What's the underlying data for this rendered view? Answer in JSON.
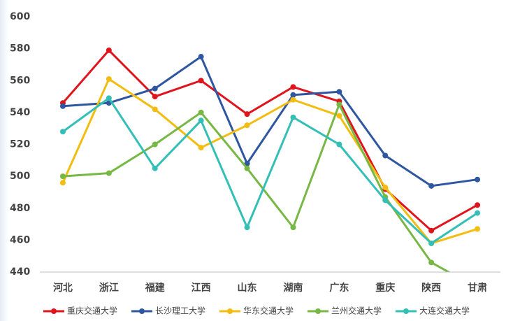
{
  "chart_data": {
    "type": "line",
    "categories": [
      "河北",
      "浙江",
      "福建",
      "江西",
      "山东",
      "湖南",
      "广东",
      "重庆",
      "陕西",
      "甘肃"
    ],
    "series": [
      {
        "name": "重庆交通大学",
        "color": "#e0141c",
        "values": [
          546,
          579,
          550,
          560,
          539,
          556,
          547,
          492,
          466,
          482
        ]
      },
      {
        "name": "长沙理工大学",
        "color": "#2f56a0",
        "values": [
          544,
          546,
          555,
          575,
          508,
          551,
          553,
          513,
          494,
          498
        ]
      },
      {
        "name": "华东交通大学",
        "color": "#f2bd10",
        "values": [
          496,
          561,
          542,
          518,
          532,
          548,
          538,
          493,
          458,
          467
        ]
      },
      {
        "name": "兰州交通大学",
        "color": "#77b844",
        "values": [
          500,
          502,
          520,
          540,
          505,
          468,
          545,
          487,
          446,
          430
        ]
      },
      {
        "name": "大连交通大学",
        "color": "#33bfb6",
        "values": [
          528,
          549,
          505,
          535,
          468,
          537,
          520,
          485,
          458,
          477
        ]
      }
    ],
    "ylim": [
      440,
      600
    ],
    "yticks": [
      440,
      460,
      480,
      500,
      520,
      540,
      560,
      580,
      600
    ]
  }
}
